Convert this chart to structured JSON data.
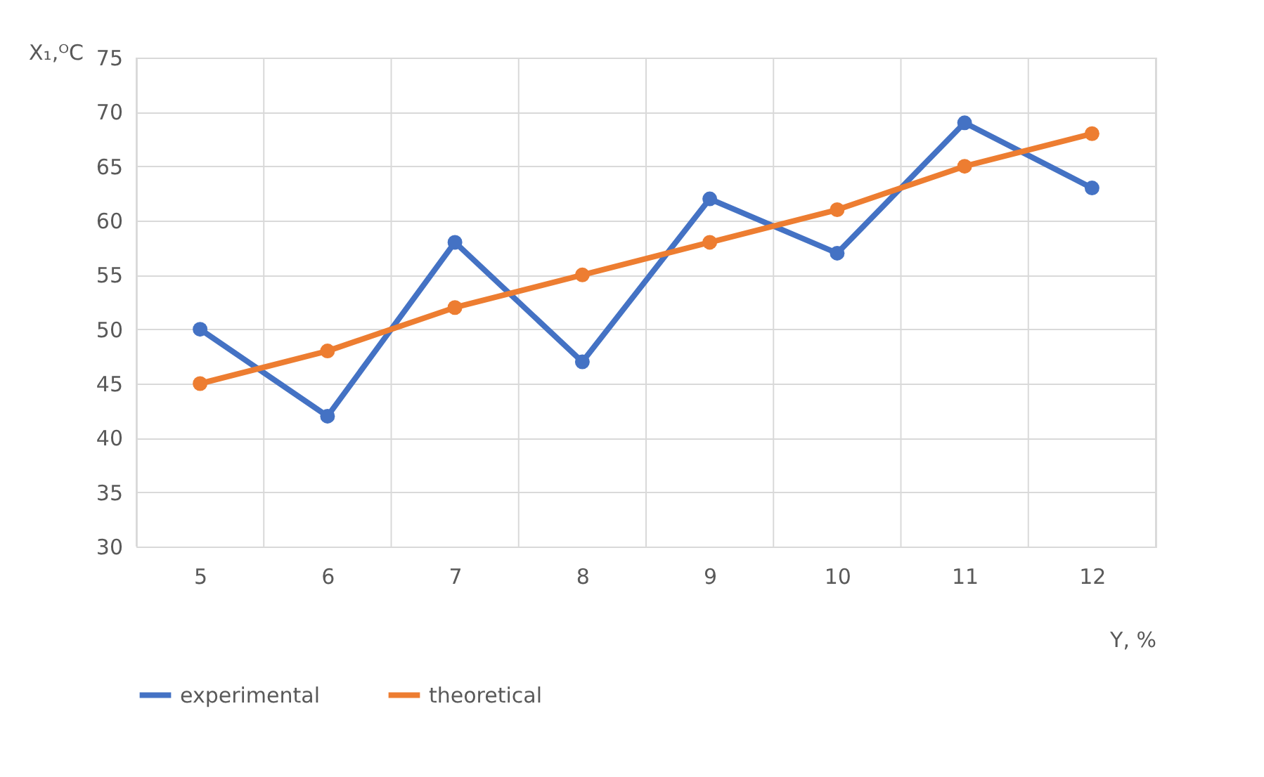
{
  "chart_data": {
    "type": "line",
    "xlabel": "Y, %",
    "ylabel": "X₁,ᴼC",
    "categories": [
      "5",
      "6",
      "7",
      "8",
      "9",
      "10",
      "11",
      "12"
    ],
    "series": [
      {
        "name": "experimental",
        "color": "#4472c4",
        "values": [
          50,
          42,
          58,
          47,
          62,
          57,
          69,
          63
        ]
      },
      {
        "name": "theoretical",
        "color": "#ed7d31",
        "values": [
          45,
          48,
          52,
          55,
          58,
          61,
          65,
          68
        ]
      }
    ],
    "ylim": [
      30,
      75
    ],
    "yticks": [
      30,
      35,
      40,
      45,
      50,
      55,
      60,
      65,
      70,
      75
    ],
    "grid": true,
    "legend": "bottom",
    "marker": "circle",
    "line_style": "solid"
  }
}
